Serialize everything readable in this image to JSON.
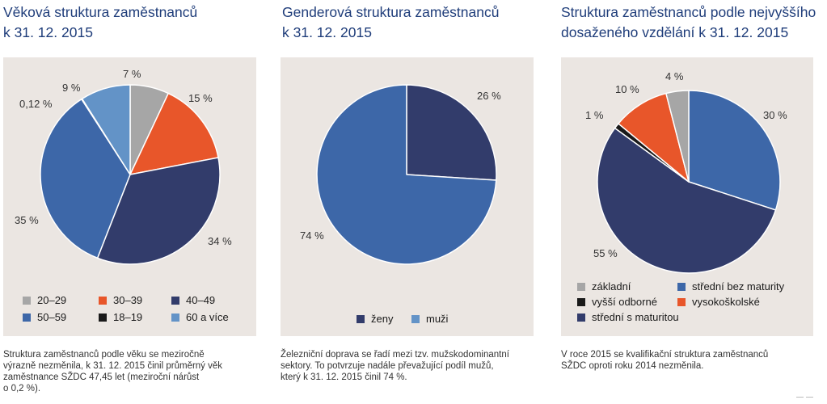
{
  "colors": {
    "title": "#1f3d7a",
    "panel": "#ebe6e2",
    "grey": "#a6a6a6",
    "orange": "#e8562a",
    "navy": "#323c6b",
    "blue": "#3d67a8",
    "black": "#1a1a1a",
    "light_blue": "#6393c7"
  },
  "panels": [
    {
      "title_line1": "Věková struktura zaměstnanců",
      "title_line2": "k 31. 12. 2015",
      "caption_lines": [
        "Struktura zaměstnanců podle věku se meziročně",
        "výrazně nezměnila, k 31. 12. 2015 činil průměrný věk",
        "zaměstnance SŽDC 47,45 let (meziroční nárůst",
        "o 0,2 %)."
      ],
      "legend": [
        {
          "label": "20–29",
          "color": "#a6a6a6"
        },
        {
          "label": "30–39",
          "color": "#e8562a"
        },
        {
          "label": "40–49",
          "color": "#323c6b"
        },
        {
          "label": "50–59",
          "color": "#3d67a8"
        },
        {
          "label": "18–19",
          "color": "#1a1a1a"
        },
        {
          "label": "60 a více",
          "color": "#6393c7"
        }
      ],
      "slice_labels": [
        "7 %",
        "15 %",
        "34 %",
        "35 %",
        "0,12 %",
        "9 %"
      ]
    },
    {
      "title_line1": "Genderová struktura zaměstnanců",
      "title_line2": "k 31. 12. 2015",
      "caption_lines": [
        "Železniční doprava se řadí mezi tzv. mužskodominantní",
        "sektory. To potvrzuje nadále převažující podíl mužů,",
        "který k 31. 12. 2015 činil 74 %."
      ],
      "legend": [
        {
          "label": "ženy",
          "color": "#323c6b"
        },
        {
          "label": "muži",
          "color": "#6393c7"
        }
      ],
      "slice_labels": [
        "26 %",
        "74 %"
      ]
    },
    {
      "title_line1": "Struktura zaměstnanců podle nejvyššího",
      "title_line2": "dosaženého vzdělání k 31. 12. 2015",
      "caption_lines": [
        "V roce 2015 se kvalifikační struktura zaměstnanců",
        "SŽDC oproti roku 2014 nezměnila."
      ],
      "legend": [
        {
          "label": "základní",
          "color": "#a6a6a6"
        },
        {
          "label": "střední bez maturity",
          "color": "#3d67a8"
        },
        {
          "label": "vyšší odborné",
          "color": "#1a1a1a"
        },
        {
          "label": "vysokoškolské",
          "color": "#e8562a"
        },
        {
          "label": "střední s maturitou",
          "color": "#323c6b"
        }
      ],
      "slice_labels": [
        "30 %",
        "55 %",
        "1 %",
        "10 %",
        "4 %"
      ]
    }
  ],
  "chart_data": [
    {
      "type": "pie",
      "title": "Věková struktura zaměstnanců k 31. 12. 2015",
      "categories": [
        "20–29",
        "30–39",
        "40–49",
        "50–59",
        "18–19",
        "60 a více"
      ],
      "values": [
        7,
        15,
        34,
        35,
        0.12,
        9
      ],
      "colors": [
        "#a6a6a6",
        "#e8562a",
        "#323c6b",
        "#3d67a8",
        "#1a1a1a",
        "#6393c7"
      ],
      "legend_position": "bottom"
    },
    {
      "type": "pie",
      "title": "Genderová struktura zaměstnanců k 31. 12. 2015",
      "categories": [
        "ženy",
        "muži"
      ],
      "values": [
        26,
        74
      ],
      "colors": [
        "#323c6b",
        "#3d67a8"
      ],
      "legend_position": "bottom"
    },
    {
      "type": "pie",
      "title": "Struktura zaměstnanců podle nejvyššího dosaženého vzdělání k 31. 12. 2015",
      "categories": [
        "střední bez maturity",
        "střední s maturitou",
        "vyšší odborné",
        "vysokoškolské",
        "základní"
      ],
      "values": [
        30,
        55,
        1,
        10,
        4
      ],
      "colors": [
        "#3d67a8",
        "#323c6b",
        "#1a1a1a",
        "#e8562a",
        "#a6a6a6"
      ],
      "legend_position": "bottom"
    }
  ]
}
